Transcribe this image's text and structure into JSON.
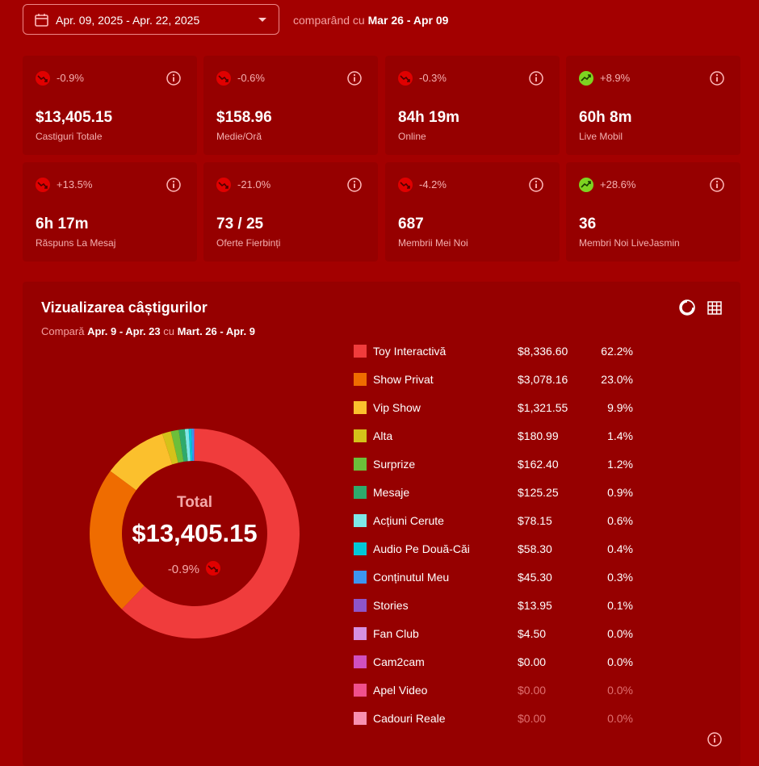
{
  "header": {
    "date_range": "Apr. 09, 2025 - Apr. 22, 2025",
    "compare_prefix": "comparând cu",
    "compare_range": "Mar 26 - Apr 09"
  },
  "cards": [
    {
      "change": "-0.9%",
      "trend": "down",
      "value": "$13,405.15",
      "label": "Castiguri Totale"
    },
    {
      "change": "-0.6%",
      "trend": "down",
      "value": "$158.96",
      "label": "Medie/Oră"
    },
    {
      "change": "-0.3%",
      "trend": "down",
      "value": "84h 19m",
      "label": "Online"
    },
    {
      "change": "+8.9%",
      "trend": "up",
      "value": "60h 8m",
      "label": "Live Mobil"
    },
    {
      "change": "+13.5%",
      "trend": "down",
      "value": "6h 17m",
      "label": "Răspuns La Mesaj"
    },
    {
      "change": "-21.0%",
      "trend": "down",
      "value": "73 / 25",
      "label": "Oferte Fierbinți"
    },
    {
      "change": "-4.2%",
      "trend": "down",
      "value": "687",
      "label": "Membrii Mei Noi"
    },
    {
      "change": "+28.6%",
      "trend": "up",
      "value": "36",
      "label": "Membri Noi LiveJasmin"
    }
  ],
  "chart_data": {
    "type": "donut",
    "title": "Vizualizarea câștigurilor",
    "subtitle": {
      "prefix": "Compară",
      "range": "Apr. 9 - Apr. 23",
      "joiner": "cu",
      "compare_range": "Mart. 26 - Apr. 9"
    },
    "center_label": "Total",
    "center_value": "$13,405.15",
    "center_change": "-0.9%",
    "center_trend": "down",
    "categories": [
      "Toy Interactivă",
      "Show Privat",
      "Vip Show",
      "Alta",
      "Surprize",
      "Mesaje",
      "Acțiuni Cerute",
      "Audio Pe Două-Căi",
      "Conținutul Meu",
      "Stories",
      "Fan Club",
      "Cam2cam",
      "Apel Video",
      "Cadouri Reale"
    ],
    "values": [
      8336.6,
      3078.16,
      1321.55,
      180.99,
      162.4,
      125.25,
      78.15,
      58.3,
      45.3,
      13.95,
      4.5,
      0.0,
      0.0,
      0.0
    ],
    "value_labels": [
      "$8,336.60",
      "$3,078.16",
      "$1,321.55",
      "$180.99",
      "$162.40",
      "$125.25",
      "$78.15",
      "$58.30",
      "$45.30",
      "$13.95",
      "$4.50",
      "$0.00",
      "$0.00",
      "$0.00"
    ],
    "shares": [
      "62.2%",
      "23.0%",
      "9.9%",
      "1.4%",
      "1.2%",
      "0.9%",
      "0.6%",
      "0.4%",
      "0.3%",
      "0.1%",
      "0.0%",
      "0.0%",
      "0.0%",
      "0.0%"
    ],
    "colors": [
      "#f03c3c",
      "#ef6c00",
      "#fbc02d",
      "#d4c21a",
      "#6cbf3a",
      "#2eaa6c",
      "#7ee8e8",
      "#00c8d8",
      "#3d95f0",
      "#8e55c8",
      "#d690e0",
      "#d050c0",
      "#f0508c",
      "#f890b0"
    ]
  }
}
